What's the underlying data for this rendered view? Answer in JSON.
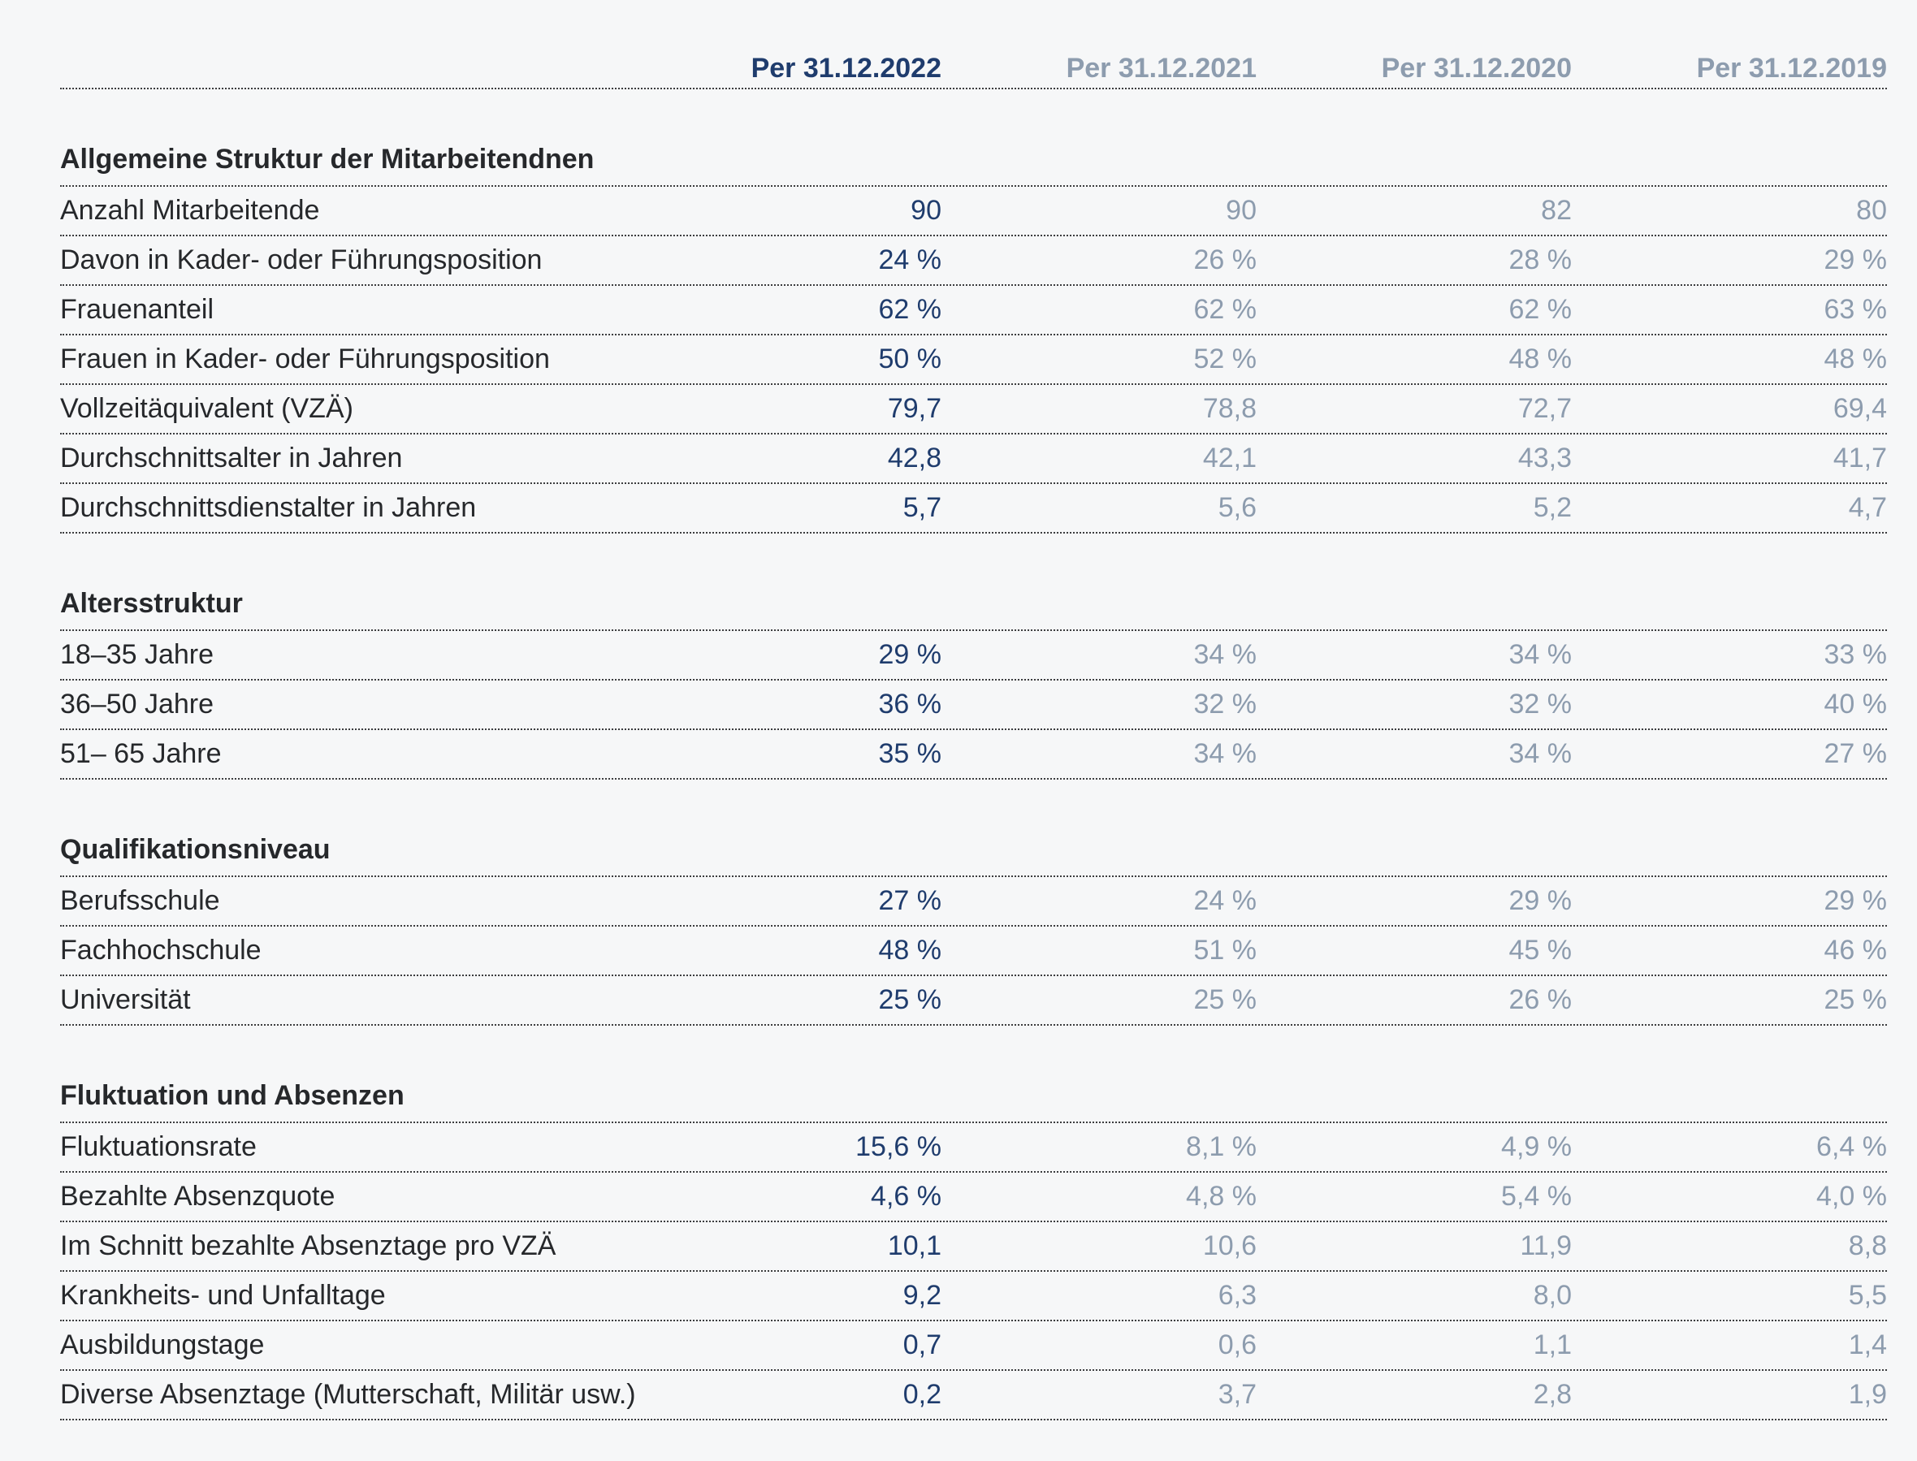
{
  "colors": {
    "background": "#f6f7f8",
    "ink": "#26282b",
    "current_year": "#1f3c6d",
    "prior_years": "#8d9cae",
    "rule": "#3b3c3e"
  },
  "table": {
    "columns": [
      "Per 31.12.2022",
      "Per 31.12.2021",
      "Per 31.12.2020",
      "Per 31.12.2019"
    ],
    "sections": [
      {
        "title": "Allgemeine Struktur der Mitarbeitendnen",
        "rows": [
          {
            "label": "Anzahl Mitarbeitende",
            "values": [
              "90",
              "90",
              "82",
              "80"
            ]
          },
          {
            "label": "Davon in Kader- oder Führungsposition",
            "values": [
              "24 %",
              "26 %",
              "28 %",
              "29 %"
            ]
          },
          {
            "label": "Frauenanteil",
            "values": [
              "62 %",
              "62 %",
              "62 %",
              "63 %"
            ]
          },
          {
            "label": "Frauen in Kader- oder Führungsposition",
            "values": [
              "50 %",
              "52 %",
              "48 %",
              "48 %"
            ]
          },
          {
            "label": "Vollzeitäquivalent (VZÄ)",
            "values": [
              "79,7",
              "78,8",
              "72,7",
              "69,4"
            ]
          },
          {
            "label": "Durchschnittsalter in Jahren",
            "values": [
              "42,8",
              "42,1",
              "43,3",
              "41,7"
            ]
          },
          {
            "label": "Durchschnittsdienstalter in Jahren",
            "values": [
              "5,7",
              "5,6",
              "5,2",
              "4,7"
            ]
          }
        ]
      },
      {
        "title": "Altersstruktur",
        "rows": [
          {
            "label": "18–35 Jahre",
            "values": [
              "29 %",
              "34 %",
              "34 %",
              "33 %"
            ]
          },
          {
            "label": "36–50 Jahre",
            "values": [
              "36 %",
              "32 %",
              "32 %",
              "40 %"
            ]
          },
          {
            "label": "51– 65 Jahre",
            "values": [
              "35 %",
              "34 %",
              "34 %",
              "27 %"
            ]
          }
        ]
      },
      {
        "title": "Qualifikationsniveau",
        "rows": [
          {
            "label": "Berufsschule",
            "values": [
              "27 %",
              "24 %",
              "29 %",
              "29 %"
            ]
          },
          {
            "label": "Fachhochschule",
            "values": [
              "48 %",
              "51 %",
              "45 %",
              "46 %"
            ]
          },
          {
            "label": "Universität",
            "values": [
              "25 %",
              "25 %",
              "26 %",
              "25 %"
            ]
          }
        ]
      },
      {
        "title": "Fluktuation und Absenzen",
        "rows": [
          {
            "label": "Fluktuationsrate",
            "values": [
              "15,6 %",
              "8,1 %",
              "4,9 %",
              "6,4 %"
            ]
          },
          {
            "label": "Bezahlte Absenzquote",
            "values": [
              "4,6 %",
              "4,8 %",
              "5,4 %",
              "4,0 %"
            ]
          },
          {
            "label": "Im Schnitt bezahlte Absenztage pro VZÄ",
            "values": [
              "10,1",
              "10,6",
              "11,9",
              "8,8"
            ]
          },
          {
            "label": "Krankheits- und Unfalltage",
            "values": [
              "9,2",
              "6,3",
              "8,0",
              "5,5"
            ]
          },
          {
            "label": "Ausbildungstage",
            "values": [
              "0,7",
              "0,6",
              "1,1",
              "1,4"
            ]
          },
          {
            "label": "Diverse Absenztage (Mutterschaft, Militär usw.)",
            "values": [
              "0,2",
              "3,7",
              "2,8",
              "1,9"
            ]
          }
        ]
      }
    ]
  }
}
